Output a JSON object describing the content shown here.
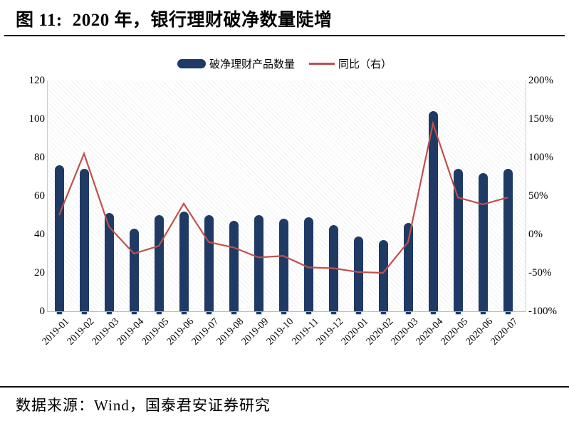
{
  "title": {
    "label": "图 11:",
    "text": "2020 年，银行理财破净数量陡增"
  },
  "footer": {
    "source_text": "数据来源：Wind，国泰君安证券研究"
  },
  "legend": {
    "bar_label": "破净理财产品数量",
    "line_label": "同比（右）"
  },
  "colors": {
    "bar": "#1F3A64",
    "line": "#C0504D",
    "axis_line": "#BBBBBB",
    "stub_border": "#C9D4E2",
    "text": "#000000"
  },
  "chart_data": {
    "type": "bar",
    "title": "2020 年，银行理财破净数量陡增",
    "categories": [
      "2019-01",
      "2019-02",
      "2019-03",
      "2019-04",
      "2019-05",
      "2019-06",
      "2019-07",
      "2019-08",
      "2019-09",
      "2019-10",
      "2019-11",
      "2019-12",
      "2020-01",
      "2020-02",
      "2020-03",
      "2020-04",
      "2020-05",
      "2020-06",
      "2020-07"
    ],
    "series": [
      {
        "name": "破净理财产品数量",
        "type": "bar",
        "axis": "left",
        "values": [
          76,
          74,
          51,
          43,
          50,
          52,
          50,
          47,
          50,
          48,
          49,
          45,
          39,
          37,
          46,
          104,
          74,
          72,
          74
        ]
      },
      {
        "name": "同比（右）",
        "type": "line",
        "axis": "right",
        "values": [
          25,
          105,
          10,
          -25,
          -15,
          40,
          -10,
          -17,
          -30,
          -28,
          -43,
          -44,
          -49,
          -50,
          -10,
          144,
          48,
          39,
          48
        ]
      }
    ],
    "left_axis": {
      "range": [
        0,
        120
      ],
      "ticks": [
        0,
        20,
        40,
        60,
        80,
        100,
        120
      ],
      "format": "number"
    },
    "right_axis": {
      "range": [
        -100,
        200
      ],
      "ticks": [
        -100,
        -50,
        0,
        50,
        100,
        150,
        200
      ],
      "format": "percent"
    },
    "grid": false,
    "legend_position": "top-center",
    "xlabel": "",
    "ylabel": ""
  }
}
